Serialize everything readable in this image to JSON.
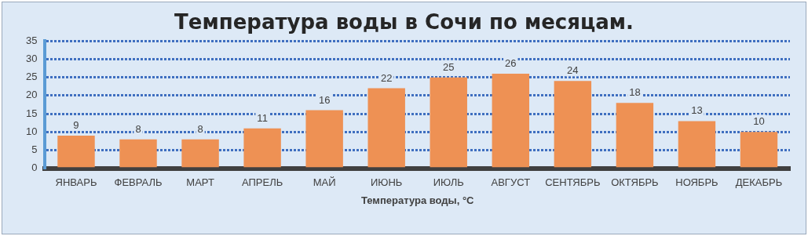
{
  "chart_data": {
    "type": "bar",
    "title": "Температура воды в Сочи по месяцам.",
    "xlabel": "Температура воды, °C",
    "categories": [
      "ЯНВАРЬ",
      "ФЕВРАЛЬ",
      "МАРТ",
      "АПРЕЛЬ",
      "МАЙ",
      "ИЮНЬ",
      "ИЮЛЬ",
      "АВГУСТ",
      "СЕНТЯБРЬ",
      "ОКТЯБРЬ",
      "НОЯБРЬ",
      "ДЕКАБРЬ"
    ],
    "values": [
      9,
      8,
      8,
      11,
      16,
      22,
      25,
      26,
      24,
      18,
      13,
      10
    ],
    "color": "#ee9154",
    "ylim": [
      0,
      35
    ],
    "yticks": [
      0,
      5,
      10,
      15,
      20,
      25,
      30,
      35
    ],
    "grid": "y",
    "data_labels": true
  }
}
